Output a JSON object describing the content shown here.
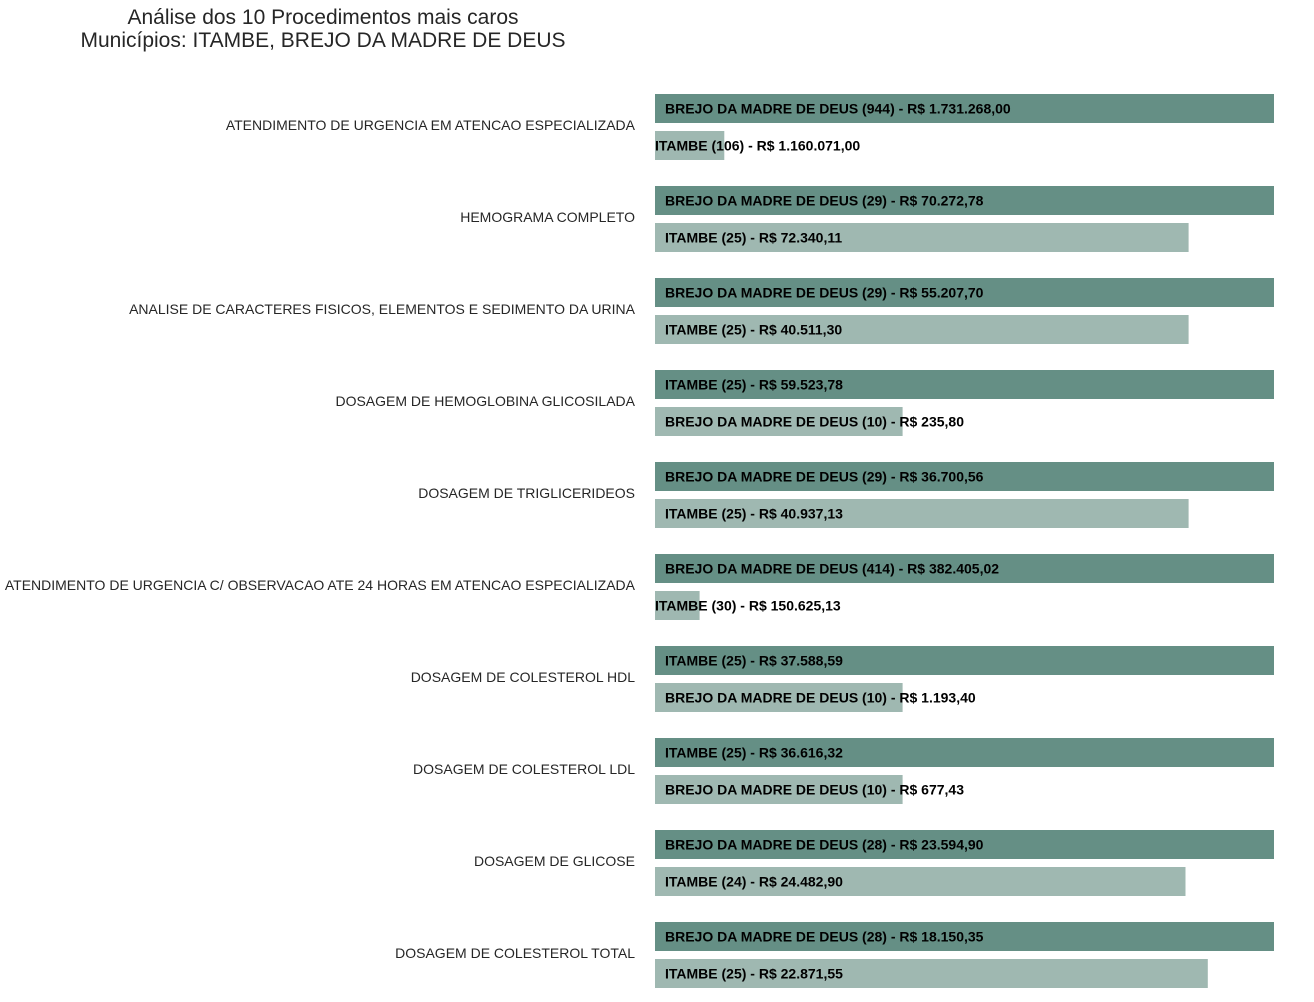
{
  "chart_data": {
    "type": "bar",
    "orientation": "horizontal",
    "title": "Análise dos 10 Procedimentos mais caros",
    "subtitle": "Municípios: ITAMBE, BREJO DA MADRE DE DEUS",
    "grid": false,
    "colors": {
      "primary": "#658f85",
      "secondary": "#9fb8b1"
    },
    "categories": [
      "ATENDIMENTO DE URGENCIA EM ATENCAO ESPECIALIZADA",
      "HEMOGRAMA COMPLETO",
      "ANALISE DE CARACTERES FISICOS, ELEMENTOS E SEDIMENTO DA URINA",
      "DOSAGEM DE HEMOGLOBINA GLICOSILADA",
      "DOSAGEM DE TRIGLICERIDEOS",
      "ATENDIMENTO DE URGENCIA C/ OBSERVACAO ATE 24 HORAS EM ATENCAO ESPECIALIZADA",
      "DOSAGEM DE COLESTEROL HDL",
      "DOSAGEM DE COLESTEROL LDL",
      "DOSAGEM DE GLICOSE",
      "DOSAGEM DE COLESTEROL TOTAL"
    ],
    "groups": [
      {
        "bars": [
          {
            "municipio": "BREJO DA MADRE DE DEUS",
            "count": 944,
            "value": 1.0,
            "label": "BREJO DA MADRE DE DEUS (944) - R$ 1.731.268,00"
          },
          {
            "municipio": "ITAMBE",
            "count": 106,
            "value": 0.112,
            "label": "ITAMBE (106) - R$ 1.160.071,00"
          }
        ]
      },
      {
        "bars": [
          {
            "municipio": "BREJO DA MADRE DE DEUS",
            "count": 29,
            "value": 1.0,
            "label": "BREJO DA MADRE DE DEUS (29) - R$ 70.272,78"
          },
          {
            "municipio": "ITAMBE",
            "count": 25,
            "value": 0.862,
            "label": "ITAMBE (25) - R$ 72.340,11"
          }
        ]
      },
      {
        "bars": [
          {
            "municipio": "BREJO DA MADRE DE DEUS",
            "count": 29,
            "value": 1.0,
            "label": "BREJO DA MADRE DE DEUS (29) - R$ 55.207,70"
          },
          {
            "municipio": "ITAMBE",
            "count": 25,
            "value": 0.862,
            "label": "ITAMBE (25) - R$ 40.511,30"
          }
        ]
      },
      {
        "bars": [
          {
            "municipio": "ITAMBE",
            "count": 25,
            "value": 1.0,
            "label": "ITAMBE (25) - R$ 59.523,78"
          },
          {
            "municipio": "BREJO DA MADRE DE DEUS",
            "count": 10,
            "value": 0.4,
            "label": "BREJO DA MADRE DE DEUS (10) - R$ 235,80"
          }
        ]
      },
      {
        "bars": [
          {
            "municipio": "BREJO DA MADRE DE DEUS",
            "count": 29,
            "value": 1.0,
            "label": "BREJO DA MADRE DE DEUS (29) - R$ 36.700,56"
          },
          {
            "municipio": "ITAMBE",
            "count": 25,
            "value": 0.862,
            "label": "ITAMBE (25) - R$ 40.937,13"
          }
        ]
      },
      {
        "bars": [
          {
            "municipio": "BREJO DA MADRE DE DEUS",
            "count": 414,
            "value": 1.0,
            "label": "BREJO DA MADRE DE DEUS (414) - R$ 382.405,02"
          },
          {
            "municipio": "ITAMBE",
            "count": 30,
            "value": 0.072,
            "label": "ITAMBE (30) - R$ 150.625,13"
          }
        ]
      },
      {
        "bars": [
          {
            "municipio": "ITAMBE",
            "count": 25,
            "value": 1.0,
            "label": "ITAMBE (25) - R$ 37.588,59"
          },
          {
            "municipio": "BREJO DA MADRE DE DEUS",
            "count": 10,
            "value": 0.4,
            "label": "BREJO DA MADRE DE DEUS (10) - R$ 1.193,40"
          }
        ]
      },
      {
        "bars": [
          {
            "municipio": "ITAMBE",
            "count": 25,
            "value": 1.0,
            "label": "ITAMBE (25) - R$ 36.616,32"
          },
          {
            "municipio": "BREJO DA MADRE DE DEUS",
            "count": 10,
            "value": 0.4,
            "label": "BREJO DA MADRE DE DEUS (10) - R$ 677,43"
          }
        ]
      },
      {
        "bars": [
          {
            "municipio": "BREJO DA MADRE DE DEUS",
            "count": 28,
            "value": 1.0,
            "label": "BREJO DA MADRE DE DEUS (28) - R$ 23.594,90"
          },
          {
            "municipio": "ITAMBE",
            "count": 24,
            "value": 0.857,
            "label": "ITAMBE (24) - R$ 24.482,90"
          }
        ]
      },
      {
        "bars": [
          {
            "municipio": "BREJO DA MADRE DE DEUS",
            "count": 28,
            "value": 1.0,
            "label": "BREJO DA MADRE DE DEUS (28) - R$ 18.150,35"
          },
          {
            "municipio": "ITAMBE",
            "count": 25,
            "value": 0.893,
            "label": "ITAMBE (25) - R$ 22.871,55"
          }
        ]
      }
    ]
  }
}
